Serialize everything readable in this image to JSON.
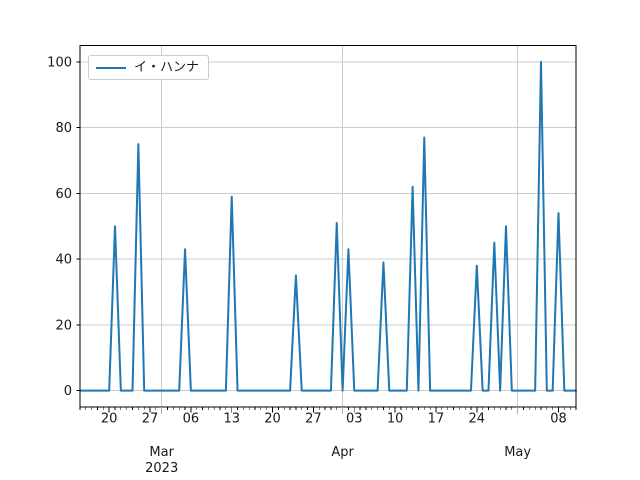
{
  "legend": {
    "label": "イ・ハンナ"
  },
  "chart_data": {
    "type": "line",
    "title": "",
    "xlabel": "",
    "ylabel": "",
    "grid": true,
    "legend_position": "upper left",
    "legend_entries": [
      "イ・ハンナ"
    ],
    "xlim": [
      "2023-02-15",
      "2023-05-11"
    ],
    "ylim": [
      -5,
      105
    ],
    "y_ticks": [
      0,
      20,
      40,
      60,
      80,
      100
    ],
    "x_week_ticks": [
      {
        "date": "2023-02-20",
        "label": "20"
      },
      {
        "date": "2023-02-27",
        "label": "27"
      },
      {
        "date": "2023-03-06",
        "label": "06"
      },
      {
        "date": "2023-03-13",
        "label": "13"
      },
      {
        "date": "2023-03-20",
        "label": "20"
      },
      {
        "date": "2023-03-27",
        "label": "27"
      },
      {
        "date": "2023-04-03",
        "label": "03"
      },
      {
        "date": "2023-04-10",
        "label": "10"
      },
      {
        "date": "2023-04-17",
        "label": "17"
      },
      {
        "date": "2023-04-24",
        "label": "24"
      },
      {
        "date": "2023-05-08",
        "label": "08"
      }
    ],
    "x_month_ticks": [
      {
        "date": "2023-03-01",
        "label": "Mar",
        "year_label": "2023"
      },
      {
        "date": "2023-04-01",
        "label": "Apr",
        "year_label": ""
      },
      {
        "date": "2023-05-01",
        "label": "May",
        "year_label": ""
      }
    ],
    "series": [
      {
        "name": "イ・ハンナ",
        "color": "#1f77b4",
        "frequency": "daily",
        "baseline_value": 0,
        "date_range": [
          "2023-02-15",
          "2023-05-11"
        ],
        "nonzero_points": [
          {
            "date": "2023-02-21",
            "value": 50
          },
          {
            "date": "2023-02-25",
            "value": 75
          },
          {
            "date": "2023-03-05",
            "value": 43
          },
          {
            "date": "2023-03-13",
            "value": 59
          },
          {
            "date": "2023-03-24",
            "value": 35
          },
          {
            "date": "2023-03-31",
            "value": 51
          },
          {
            "date": "2023-04-02",
            "value": 43
          },
          {
            "date": "2023-04-08",
            "value": 39
          },
          {
            "date": "2023-04-13",
            "value": 62
          },
          {
            "date": "2023-04-15",
            "value": 77
          },
          {
            "date": "2023-04-24",
            "value": 38
          },
          {
            "date": "2023-04-27",
            "value": 45
          },
          {
            "date": "2023-04-29",
            "value": 50
          },
          {
            "date": "2023-05-05",
            "value": 100
          },
          {
            "date": "2023-05-08",
            "value": 54
          }
        ]
      }
    ],
    "colors": {
      "line": "#1f77b4",
      "grid": "#cccccc",
      "month_tick": "#b0b0b0",
      "spine": "#000000",
      "tick": "#000000",
      "text": "#1a1a1a",
      "legend_border": "#cccccc",
      "background": "#ffffff"
    }
  }
}
